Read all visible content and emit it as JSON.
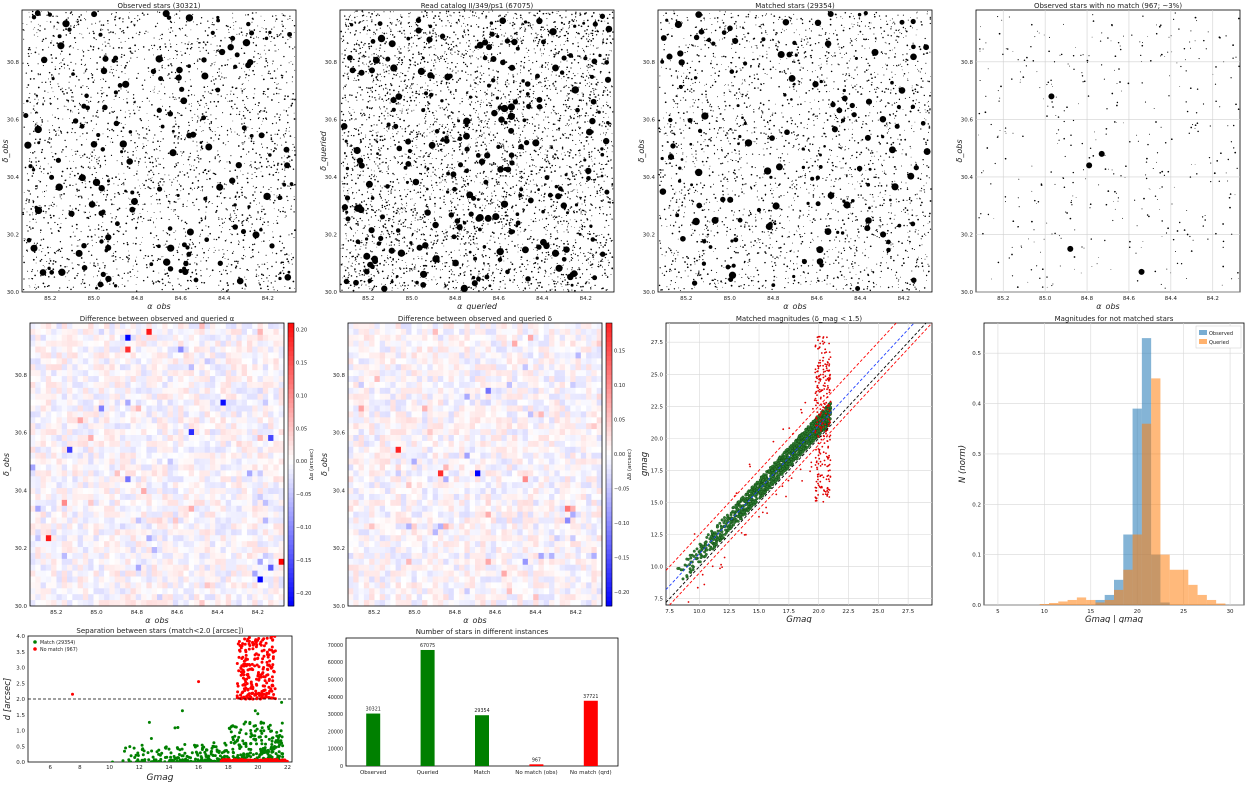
{
  "chart_data": [
    {
      "id": "obs",
      "type": "scatter",
      "title": "Observed stars (30321)",
      "xlabel": "α_obs",
      "ylabel": "δ_obs",
      "xlim": [
        85.33,
        84.07
      ],
      "ylim": [
        30.0,
        30.98
      ],
      "xticks": [
        "85.2",
        "85.0",
        "84.8",
        "84.6",
        "84.4",
        "84.2"
      ],
      "yticks": [
        "30.0",
        "30.2",
        "30.4",
        "30.6",
        "30.8"
      ],
      "grid": false,
      "density": "dense"
    },
    {
      "id": "cat",
      "type": "scatter",
      "title": "Read catalog II/349/ps1 (67075)",
      "xlabel": "α_queried",
      "ylabel": "δ_queried",
      "xlim": [
        85.33,
        84.07
      ],
      "ylim": [
        30.0,
        30.98
      ],
      "xticks": [
        "85.2",
        "85.0",
        "84.8",
        "84.6",
        "84.4",
        "84.2"
      ],
      "yticks": [
        "30.0",
        "30.2",
        "30.4",
        "30.6",
        "30.8"
      ],
      "grid": false,
      "density": "verydense"
    },
    {
      "id": "match",
      "type": "scatter",
      "title": "Matched stars (29354)",
      "xlabel": "α_obs",
      "ylabel": "δ_obs",
      "xlim": [
        85.33,
        84.07
      ],
      "ylim": [
        30.0,
        30.98
      ],
      "xticks": [
        "85.2",
        "85.0",
        "84.8",
        "84.6",
        "84.4",
        "84.2"
      ],
      "yticks": [
        "30.0",
        "30.2",
        "30.4",
        "30.6",
        "30.8"
      ],
      "grid": false,
      "density": "dense"
    },
    {
      "id": "nomatch",
      "type": "scatter",
      "title": "Observed stars with no match (967; ~3%)",
      "xlabel": "α_obs",
      "ylabel": "δ_obs",
      "xlim": [
        85.33,
        84.07
      ],
      "ylim": [
        30.0,
        30.98
      ],
      "xticks": [
        "85.2",
        "85.0",
        "84.8",
        "84.6",
        "84.4",
        "84.2"
      ],
      "yticks": [
        "30.0",
        "30.2",
        "30.4",
        "30.6",
        "30.8"
      ],
      "grid": true,
      "big_stars": [
        {
          "x": 84.97,
          "y": 30.68
        },
        {
          "x": 84.79,
          "y": 30.44
        },
        {
          "x": 84.73,
          "y": 30.48
        },
        {
          "x": 84.88,
          "y": 30.15
        },
        {
          "x": 84.54,
          "y": 30.07
        }
      ]
    },
    {
      "id": "dalpha",
      "type": "heatmap",
      "title": "Difference between observed and queried α",
      "xlabel": "α_obs",
      "ylabel": "δ_obs",
      "colorbar_label": "Δα (arcsec)",
      "colorbar_ticks": [
        "0.20",
        "0.15",
        "0.10",
        "0.05",
        "0.00",
        "−0.05",
        "−0.10",
        "−0.15",
        "−0.20"
      ],
      "colorbar_values": [
        0.2,
        0.15,
        0.1,
        0.05,
        0.0,
        -0.05,
        -0.1,
        -0.15,
        -0.2
      ],
      "clim": [
        -0.22,
        0.21
      ],
      "xlim": [
        85.33,
        84.07
      ],
      "ylim": [
        30.0,
        30.98
      ],
      "xticks": [
        "85.2",
        "85.0",
        "84.8",
        "84.6",
        "84.4",
        "84.2"
      ],
      "yticks": [
        "30.0",
        "30.2",
        "30.4",
        "30.6",
        "30.8"
      ],
      "grid": false,
      "hot_cells": [
        {
          "i": 18,
          "j": 2,
          "v": -0.22
        },
        {
          "i": 22,
          "j": 1,
          "v": 0.2
        },
        {
          "i": 18,
          "j": 4,
          "v": 0.18
        },
        {
          "i": 30,
          "j": 18,
          "v": -0.18
        },
        {
          "i": 7,
          "j": 21,
          "v": -0.17
        },
        {
          "i": 45,
          "j": 19,
          "v": -0.16
        },
        {
          "i": 36,
          "j": 13,
          "v": -0.21
        },
        {
          "i": 47,
          "j": 40,
          "v": 0.22
        },
        {
          "i": 45,
          "j": 41,
          "v": -0.14
        },
        {
          "i": 3,
          "j": 36,
          "v": 0.2
        },
        {
          "i": 43,
          "j": 43,
          "v": -0.22
        },
        {
          "i": 18,
          "j": 26,
          "v": -0.12
        },
        {
          "i": 6,
          "j": 30,
          "v": 0.1
        },
        {
          "i": 13,
          "j": 14,
          "v": -0.11
        },
        {
          "i": 28,
          "j": 4,
          "v": -0.1
        }
      ]
    },
    {
      "id": "ddelta",
      "type": "heatmap",
      "title": "Difference between observed and queried δ",
      "xlabel": "α_obs",
      "ylabel": "δ_obs",
      "colorbar_label": "Δδ (arcsec)",
      "colorbar_ticks": [
        "0.15",
        "0.10",
        "0.05",
        "0.00",
        "−0.05",
        "−0.10",
        "−0.15",
        "−0.20"
      ],
      "colorbar_values": [
        0.15,
        0.1,
        0.05,
        0.0,
        -0.05,
        -0.1,
        -0.15,
        -0.2
      ],
      "clim": [
        -0.22,
        0.19
      ],
      "xlim": [
        85.33,
        84.07
      ],
      "ylim": [
        30.0,
        30.98
      ],
      "xticks": [
        "85.2",
        "85.0",
        "84.8",
        "84.6",
        "84.4",
        "84.2"
      ],
      "yticks": [
        "30.0",
        "30.2",
        "30.4",
        "30.6",
        "30.8"
      ],
      "grid": false,
      "hot_cells": [
        {
          "i": 9,
          "j": 21,
          "v": 0.19
        },
        {
          "i": 17,
          "j": 25,
          "v": 0.18
        },
        {
          "i": 24,
          "j": 25,
          "v": -0.22
        },
        {
          "i": 26,
          "j": 11,
          "v": -0.12
        },
        {
          "i": 33,
          "j": 26,
          "v": 0.1
        },
        {
          "i": 41,
          "j": 31,
          "v": 0.12
        },
        {
          "i": 41,
          "j": 33,
          "v": -0.1
        },
        {
          "i": 33,
          "j": 40,
          "v": -0.09
        },
        {
          "i": 22,
          "j": 22,
          "v": -0.08
        }
      ]
    },
    {
      "id": "mags",
      "type": "scatter",
      "title": "Matched magnitudes (δ_mag < 1.5)",
      "xlabel": "Gmag",
      "ylabel": "gmag",
      "xlim": [
        7.2,
        29.5
      ],
      "ylim": [
        7.0,
        29.0
      ],
      "xticks": [
        7.5,
        10.0,
        12.5,
        15.0,
        17.5,
        20.0,
        22.5,
        25.0,
        27.5
      ],
      "yticks": [
        7.5,
        10.0,
        12.5,
        15.0,
        17.5,
        20.0,
        22.5,
        25.0,
        27.5
      ],
      "grid": true,
      "offset_line": 1.0,
      "tolerance": 1.5
    },
    {
      "id": "hist",
      "type": "bar",
      "title": "Magnitudes for not matched stars",
      "xlabel": "Gmag | gmag",
      "ylabel": "N (norm)",
      "xlim": [
        3.5,
        31.5
      ],
      "ylim": [
        0.0,
        0.56
      ],
      "xticks": [
        5,
        10,
        15,
        20,
        25,
        30
      ],
      "yticks": [
        0.0,
        0.1,
        0.2,
        0.3,
        0.4,
        0.5
      ],
      "grid": true,
      "legend_position": "top-right",
      "bin_width": 1,
      "series": [
        {
          "name": "Observed",
          "color": "#1f77b4",
          "bins": [
            [
              16,
              0.01
            ],
            [
              17,
              0.02
            ],
            [
              18,
              0.05
            ],
            [
              19,
              0.14
            ],
            [
              20,
              0.39
            ],
            [
              21,
              0.53
            ],
            [
              22,
              0.1
            ],
            [
              23,
              0.005
            ]
          ]
        },
        {
          "name": "Queried",
          "color": "#ff7f0e",
          "bins": [
            [
              10,
              0.002
            ],
            [
              11,
              0.004
            ],
            [
              12,
              0.007
            ],
            [
              13,
              0.01
            ],
            [
              14,
              0.015
            ],
            [
              15,
              0.01
            ],
            [
              16,
              0.005
            ],
            [
              17,
              0.01
            ],
            [
              18,
              0.03
            ],
            [
              19,
              0.07
            ],
            [
              20,
              0.14
            ],
            [
              21,
              0.36
            ],
            [
              22,
              0.45
            ],
            [
              23,
              0.1
            ],
            [
              24,
              0.07
            ],
            [
              25,
              0.07
            ],
            [
              26,
              0.04
            ],
            [
              27,
              0.02
            ],
            [
              28,
              0.01
            ],
            [
              29,
              0.003
            ]
          ]
        }
      ]
    },
    {
      "id": "sep",
      "type": "scatter",
      "title": "Separation between stars (match<2.0 [arcsec])",
      "xlabel": "Gmag",
      "ylabel": "d [arcsec]",
      "xlim": [
        4.5,
        22.3
      ],
      "ylim": [
        0.0,
        4.0
      ],
      "xticks": [
        6,
        8,
        10,
        12,
        14,
        16,
        18,
        20,
        22
      ],
      "yticks": [
        0.0,
        0.5,
        1.0,
        1.5,
        2.0,
        2.5,
        3.0,
        3.5,
        4.0
      ],
      "threshold": 2.0,
      "legend_position": "top-left",
      "series": [
        {
          "name": "Match (29354)",
          "color": "#008000"
        },
        {
          "name": "No match (967)",
          "color": "#ff0000"
        }
      ]
    },
    {
      "id": "counts",
      "type": "bar",
      "title": "Number of stars in different instances",
      "categories": [
        "Observed",
        "Queried",
        "Match",
        "No match (obs)",
        "No match (qrd)"
      ],
      "values": [
        30321,
        67075,
        29354,
        967,
        37721
      ],
      "colors": [
        "#008000",
        "#008000",
        "#008000",
        "#ff0000",
        "#ff0000"
      ],
      "value_labels": [
        "30321",
        "67075",
        "29354",
        "967",
        "37721"
      ],
      "ylim": [
        0,
        74000
      ],
      "yticks": [
        0,
        10000,
        20000,
        30000,
        40000,
        50000,
        60000,
        70000
      ]
    }
  ]
}
